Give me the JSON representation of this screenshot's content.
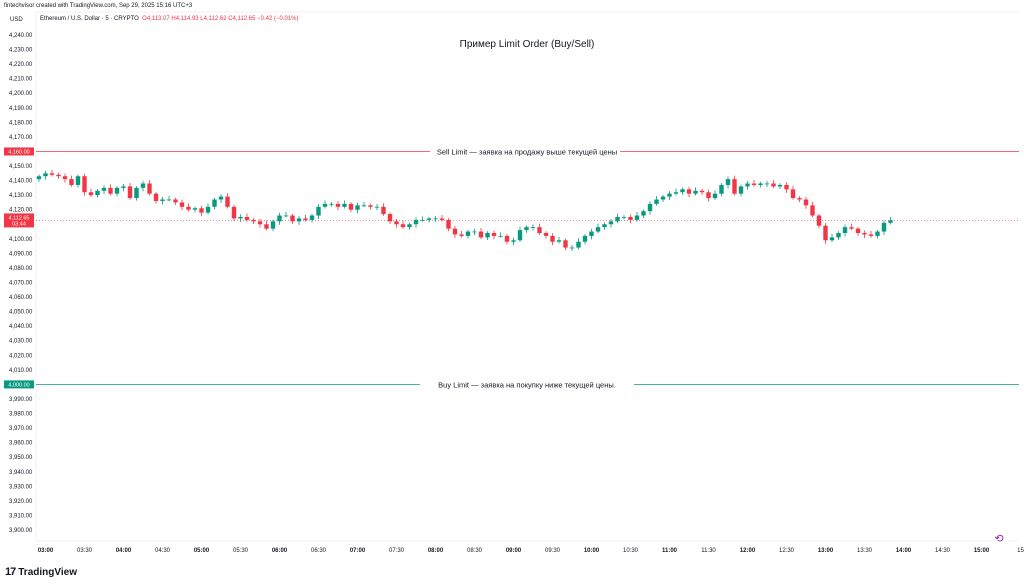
{
  "header": {
    "credit": "fintechvisor created with TradingView.com, Sep 29, 2025 15:16 UTC+3",
    "symbol": "Ethereum / U.S. Dollar · 5 · CRYPTO",
    "ohlc": "O4,113.07 H4,114.93 L4,112.62 C4,112.65 −0.42 (−0.01%)"
  },
  "footer": {
    "brand": "TradingView",
    "logo": "17"
  },
  "icons": {
    "reset": "reset-icon"
  },
  "colors": {
    "up": "#089981",
    "down": "#f23645",
    "sell_line": "#f23645",
    "buy_line": "#089981",
    "current": "#f23645"
  },
  "chart_data": {
    "type": "candlestick",
    "title": "Пример Limit Order (Buy/Sell)",
    "currency": "USD",
    "ylim": [
      3895,
      4245
    ],
    "y_ticks": [
      {
        "v": 4240,
        "t": "4,240.00"
      },
      {
        "v": 4230,
        "t": "4,230.00"
      },
      {
        "v": 4220,
        "t": "4,220.00"
      },
      {
        "v": 4210,
        "t": "4,210.00"
      },
      {
        "v": 4200,
        "t": "4,200.00"
      },
      {
        "v": 4190,
        "t": "4,190.00"
      },
      {
        "v": 4180,
        "t": "4,180.00"
      },
      {
        "v": 4170,
        "t": "4,170.00"
      },
      {
        "v": 4150,
        "t": "4,150.00"
      },
      {
        "v": 4140,
        "t": "4,140.00"
      },
      {
        "v": 4130,
        "t": "4,130.00"
      },
      {
        "v": 4120,
        "t": "4,120.00"
      },
      {
        "v": 4100,
        "t": "4,100.00"
      },
      {
        "v": 4090,
        "t": "4,090.00"
      },
      {
        "v": 4080,
        "t": "4,080.00"
      },
      {
        "v": 4070,
        "t": "4,070.00"
      },
      {
        "v": 4060,
        "t": "4,060.00"
      },
      {
        "v": 4050,
        "t": "4,050.00"
      },
      {
        "v": 4040,
        "t": "4,040.00"
      },
      {
        "v": 4030,
        "t": "4,030.00"
      },
      {
        "v": 4020,
        "t": "4,020.00"
      },
      {
        "v": 4010,
        "t": "4,010.00"
      },
      {
        "v": 3990,
        "t": "3,990.00"
      },
      {
        "v": 3980,
        "t": "3,980.00"
      },
      {
        "v": 3970,
        "t": "3,970.00"
      },
      {
        "v": 3960,
        "t": "3,960.00"
      },
      {
        "v": 3950,
        "t": "3,950.00"
      },
      {
        "v": 3940,
        "t": "3,940.00"
      },
      {
        "v": 3930,
        "t": "3,930.00"
      },
      {
        "v": 3920,
        "t": "3,920.00"
      },
      {
        "v": 3910,
        "t": "3,910.00"
      },
      {
        "v": 3900,
        "t": "3,900.00"
      }
    ],
    "x_ticks": [
      {
        "t": "03:00",
        "bold": true,
        "i": 1
      },
      {
        "t": "03:30",
        "bold": false,
        "i": 7
      },
      {
        "t": "04:00",
        "bold": true,
        "i": 13
      },
      {
        "t": "04:30",
        "bold": false,
        "i": 19
      },
      {
        "t": "05:00",
        "bold": true,
        "i": 25
      },
      {
        "t": "05:30",
        "bold": false,
        "i": 31
      },
      {
        "t": "06:00",
        "bold": true,
        "i": 37
      },
      {
        "t": "06:30",
        "bold": false,
        "i": 43
      },
      {
        "t": "07:00",
        "bold": true,
        "i": 49
      },
      {
        "t": "07:30",
        "bold": false,
        "i": 55
      },
      {
        "t": "08:00",
        "bold": true,
        "i": 61
      },
      {
        "t": "08:30",
        "bold": false,
        "i": 67
      },
      {
        "t": "09:00",
        "bold": true,
        "i": 73
      },
      {
        "t": "09:30",
        "bold": false,
        "i": 79
      },
      {
        "t": "10:00",
        "bold": true,
        "i": 85
      },
      {
        "t": "10:30",
        "bold": false,
        "i": 91
      },
      {
        "t": "11:00",
        "bold": true,
        "i": 97
      },
      {
        "t": "11:30",
        "bold": false,
        "i": 103
      },
      {
        "t": "12:00",
        "bold": true,
        "i": 109
      },
      {
        "t": "12:30",
        "bold": false,
        "i": 115
      },
      {
        "t": "13:00",
        "bold": true,
        "i": 121
      },
      {
        "t": "13:30",
        "bold": false,
        "i": 127
      },
      {
        "t": "14:00",
        "bold": true,
        "i": 133
      },
      {
        "t": "14:30",
        "bold": false,
        "i": 139
      },
      {
        "t": "15:00",
        "bold": true,
        "i": 145
      },
      {
        "t": "15",
        "bold": false,
        "i": 151
      }
    ],
    "sell_limit": {
      "price": 4160,
      "price_label": "4,160.00",
      "text": "Sell Limit — заявка на продажу выше текущей цены"
    },
    "buy_limit": {
      "price": 4000,
      "price_label": "4,000.00",
      "text": "Buy Limit — заявка на покупку ниже текущей цены."
    },
    "current_price": {
      "price": 4112.65,
      "label": "4,112.65",
      "countdown": "03:44"
    },
    "closes": [
      4143,
      4145,
      4144,
      4143,
      4141,
      4137,
      4143,
      4132,
      4130,
      4133,
      4135,
      4131,
      4135,
      4136,
      4128,
      4135,
      4138,
      4131,
      4126,
      4127,
      4127,
      4125,
      4122,
      4120,
      4121,
      4118,
      4122,
      4127,
      4129,
      4122,
      4114,
      4115,
      4113,
      4112,
      4110,
      4107,
      4112,
      4116,
      4116,
      4112,
      4114,
      4113,
      4116,
      4122,
      4124,
      4124,
      4122,
      4124,
      4120,
      4123,
      4123,
      4122,
      4122,
      4117,
      4112,
      4110,
      4108,
      4110,
      4113,
      4113,
      4114,
      4114,
      4113,
      4107,
      4103,
      4102,
      4105,
      4105,
      4101,
      4104,
      4102,
      4102,
      4098,
      4099,
      4106,
      4108,
      4108,
      4104,
      4102,
      4098,
      4099,
      4094,
      4094,
      4098,
      4102,
      4105,
      4108,
      4110,
      4112,
      4115,
      4115,
      4113,
      4116,
      4119,
      4124,
      4127,
      4129,
      4131,
      4132,
      4134,
      4131,
      4133,
      4132,
      4128,
      4131,
      4137,
      4141,
      4131,
      4136,
      4138,
      4137,
      4138,
      4138,
      4136,
      4137,
      4134,
      4128,
      4127,
      4123,
      4116,
      4109,
      4099,
      4101,
      4104,
      4108,
      4107,
      4104,
      4103,
      4102,
      4105,
      4111,
      4112.65
    ],
    "open": 4141
  }
}
